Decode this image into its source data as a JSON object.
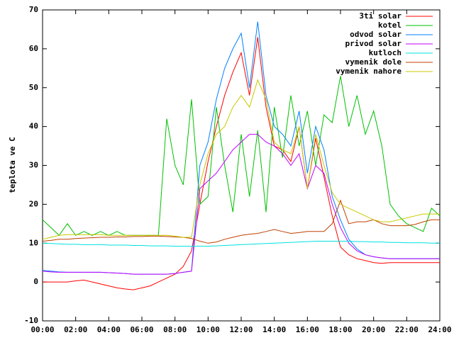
{
  "chart_data": {
    "type": "line",
    "y_label": "teplota ve C",
    "x": [
      0,
      0.5,
      1,
      1.5,
      2,
      2.5,
      3,
      3.5,
      4,
      4.5,
      5,
      5.5,
      6,
      6.5,
      7,
      7.5,
      8,
      8.5,
      9,
      9.5,
      10,
      10.5,
      11,
      11.5,
      12,
      12.5,
      13,
      13.5,
      14,
      14.5,
      15,
      15.5,
      16,
      16.5,
      17,
      17.5,
      18,
      18.5,
      19,
      19.5,
      20,
      20.5,
      21,
      21.5,
      22,
      22.5,
      23,
      23.5,
      24
    ],
    "series": [
      {
        "name": "3ti solar",
        "color": "#ff0000",
        "values": [
          0,
          0,
          0,
          0,
          0.3,
          0.5,
          0,
          -0.5,
          -1,
          -1.5,
          -1.8,
          -2,
          -1.5,
          -1,
          0,
          1,
          2,
          4,
          8,
          20,
          31,
          40,
          48,
          54,
          59,
          48,
          63,
          45,
          35,
          34,
          31,
          40,
          24,
          37,
          27,
          17,
          9,
          7,
          6,
          5.5,
          5,
          4.8,
          5,
          5,
          5,
          5,
          5,
          5,
          5
        ]
      },
      {
        "name": "kotel",
        "color": "#00c000",
        "values": [
          16,
          14,
          12,
          15,
          12,
          13,
          12,
          13,
          12,
          13,
          12,
          12,
          12,
          12,
          12,
          42,
          30,
          25,
          47,
          20,
          22,
          45,
          30,
          18,
          38,
          22,
          39,
          18,
          45,
          32,
          48,
          35,
          44,
          30,
          43,
          41,
          53,
          40,
          48,
          38,
          44,
          35,
          20,
          17,
          15,
          14,
          13,
          19,
          17
        ]
      },
      {
        "name": "odvod solar",
        "color": "#0080ff",
        "values": [
          3,
          2.8,
          2.6,
          2.5,
          2.5,
          2.5,
          2.5,
          2.5,
          2.4,
          2.3,
          2.2,
          2,
          2,
          2,
          2,
          2,
          2.2,
          2.5,
          2.8,
          30,
          36,
          47,
          55,
          60,
          64,
          50,
          67,
          48,
          40,
          38,
          35,
          44,
          28,
          40,
          34,
          22,
          16,
          11,
          8.5,
          7,
          6.5,
          6.2,
          6,
          6,
          6,
          6,
          6,
          6,
          6
        ]
      },
      {
        "name": "privod solar",
        "color": "#c000ff",
        "values": [
          2.8,
          2.6,
          2.5,
          2.5,
          2.5,
          2.5,
          2.5,
          2.5,
          2.4,
          2.3,
          2.2,
          2,
          2,
          2,
          2,
          2,
          2.2,
          2.5,
          2.8,
          24,
          26,
          28,
          31,
          34,
          36,
          38,
          38,
          36,
          35,
          33,
          30,
          33,
          24,
          30,
          28,
          20,
          14,
          10,
          8,
          7,
          6.5,
          6.2,
          6,
          6,
          6,
          6,
          6,
          6,
          6
        ]
      },
      {
        "name": "kutloch",
        "color": "#00e0e0",
        "values": [
          10,
          9.9,
          9.8,
          9.7,
          9.7,
          9.6,
          9.6,
          9.6,
          9.5,
          9.5,
          9.5,
          9.4,
          9.4,
          9.3,
          9.3,
          9.3,
          9.2,
          9.2,
          9.2,
          9.2,
          9.2,
          9.3,
          9.4,
          9.5,
          9.6,
          9.7,
          9.8,
          9.9,
          10,
          10.1,
          10.2,
          10.3,
          10.4,
          10.5,
          10.5,
          10.5,
          10.5,
          10.5,
          10.4,
          10.4,
          10.3,
          10.3,
          10.2,
          10.2,
          10.1,
          10.1,
          10.1,
          10,
          10
        ]
      },
      {
        "name": "vymenik dole",
        "color": "#c04000",
        "values": [
          10.5,
          10.7,
          11,
          11,
          11.2,
          11.3,
          11.4,
          11.5,
          11.5,
          11.6,
          11.6,
          11.7,
          11.7,
          11.8,
          11.8,
          11.7,
          11.6,
          11.5,
          11.2,
          10.5,
          10,
          10.3,
          11,
          11.5,
          12,
          12.3,
          12.5,
          13,
          13.5,
          13,
          12.5,
          12.7,
          13,
          13,
          13,
          15,
          21,
          15,
          15.5,
          15.5,
          16,
          15,
          14.5,
          14.5,
          14.5,
          14.8,
          15.5,
          16,
          16
        ]
      },
      {
        "name": "vymenik nahore",
        "color": "#c8c800",
        "values": [
          11,
          11.5,
          12,
          12.2,
          12.2,
          12.2,
          12.2,
          12.2,
          12,
          12,
          12,
          12,
          12,
          12,
          12,
          12,
          11.8,
          11.5,
          11.5,
          25,
          33,
          38,
          40,
          45,
          48,
          45,
          52,
          47,
          36,
          34,
          33,
          40,
          24,
          38,
          30,
          23,
          20,
          19,
          18,
          17,
          16,
          15.5,
          15.5,
          16,
          16.5,
          17,
          17.5,
          17.5,
          17.5
        ]
      }
    ],
    "xlim": [
      0,
      24
    ],
    "xticks": [
      {
        "value": 0,
        "label": "00:00"
      },
      {
        "value": 2,
        "label": "02:00"
      },
      {
        "value": 4,
        "label": "04:00"
      },
      {
        "value": 6,
        "label": "06:00"
      },
      {
        "value": 8,
        "label": "08:00"
      },
      {
        "value": 10,
        "label": "10:00"
      },
      {
        "value": 12,
        "label": "12:00"
      },
      {
        "value": 14,
        "label": "14:00"
      },
      {
        "value": 16,
        "label": "16:00"
      },
      {
        "value": 18,
        "label": "18:00"
      },
      {
        "value": 20,
        "label": "20:00"
      },
      {
        "value": 22,
        "label": "22:00"
      },
      {
        "value": 24,
        "label": "24:00"
      }
    ],
    "ylim": [
      -10,
      70
    ],
    "yticks": [
      -10,
      0,
      10,
      20,
      30,
      40,
      50,
      60,
      70
    ],
    "legend": "top-right"
  }
}
